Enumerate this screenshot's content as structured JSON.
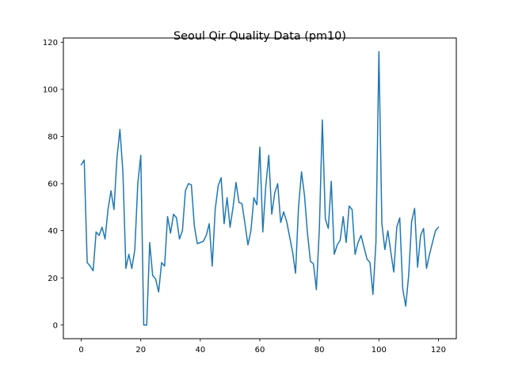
{
  "chart_data": {
    "type": "line",
    "title": "Seoul Qir Quality Data (pm10)",
    "xlabel": "",
    "ylabel": "",
    "xlim": [
      -6,
      126
    ],
    "ylim": [
      -5.8,
      121.8
    ],
    "x_ticks": [
      0,
      20,
      40,
      60,
      80,
      100,
      120
    ],
    "y_ticks": [
      0,
      20,
      40,
      60,
      80,
      100,
      120
    ],
    "grid": false,
    "line_color": "#1f77b4",
    "series": [
      {
        "values": [
          68,
          70,
          26.5,
          25,
          23,
          39.5,
          38,
          41.5,
          36.5,
          49,
          57,
          49,
          71,
          83,
          65,
          24,
          30,
          24,
          32,
          60,
          72,
          0,
          0,
          35,
          21,
          19.5,
          14,
          26.5,
          25,
          46,
          39,
          47,
          45.5,
          36.5,
          40,
          57,
          60,
          59.5,
          42,
          34.5,
          35,
          35.5,
          38,
          43,
          25,
          49,
          59,
          62.5,
          43,
          54,
          41.5,
          50,
          60.5,
          52,
          51.5,
          43,
          34,
          40,
          54,
          51,
          75.5,
          39.5,
          59,
          72,
          47,
          56,
          60,
          43.5,
          48,
          44,
          37.5,
          31,
          22,
          50,
          65,
          55,
          39,
          27,
          26,
          15,
          41,
          87,
          45,
          41,
          61,
          30,
          34,
          36,
          46,
          35,
          50.5,
          49,
          30,
          35,
          38,
          33,
          28,
          26.5,
          13,
          35,
          116,
          43,
          32,
          40,
          31,
          22.5,
          41.5,
          45.5,
          15.5,
          8,
          21,
          44,
          49.5,
          24.5,
          38,
          41,
          24,
          30,
          35,
          40,
          41.5
        ]
      }
    ]
  }
}
